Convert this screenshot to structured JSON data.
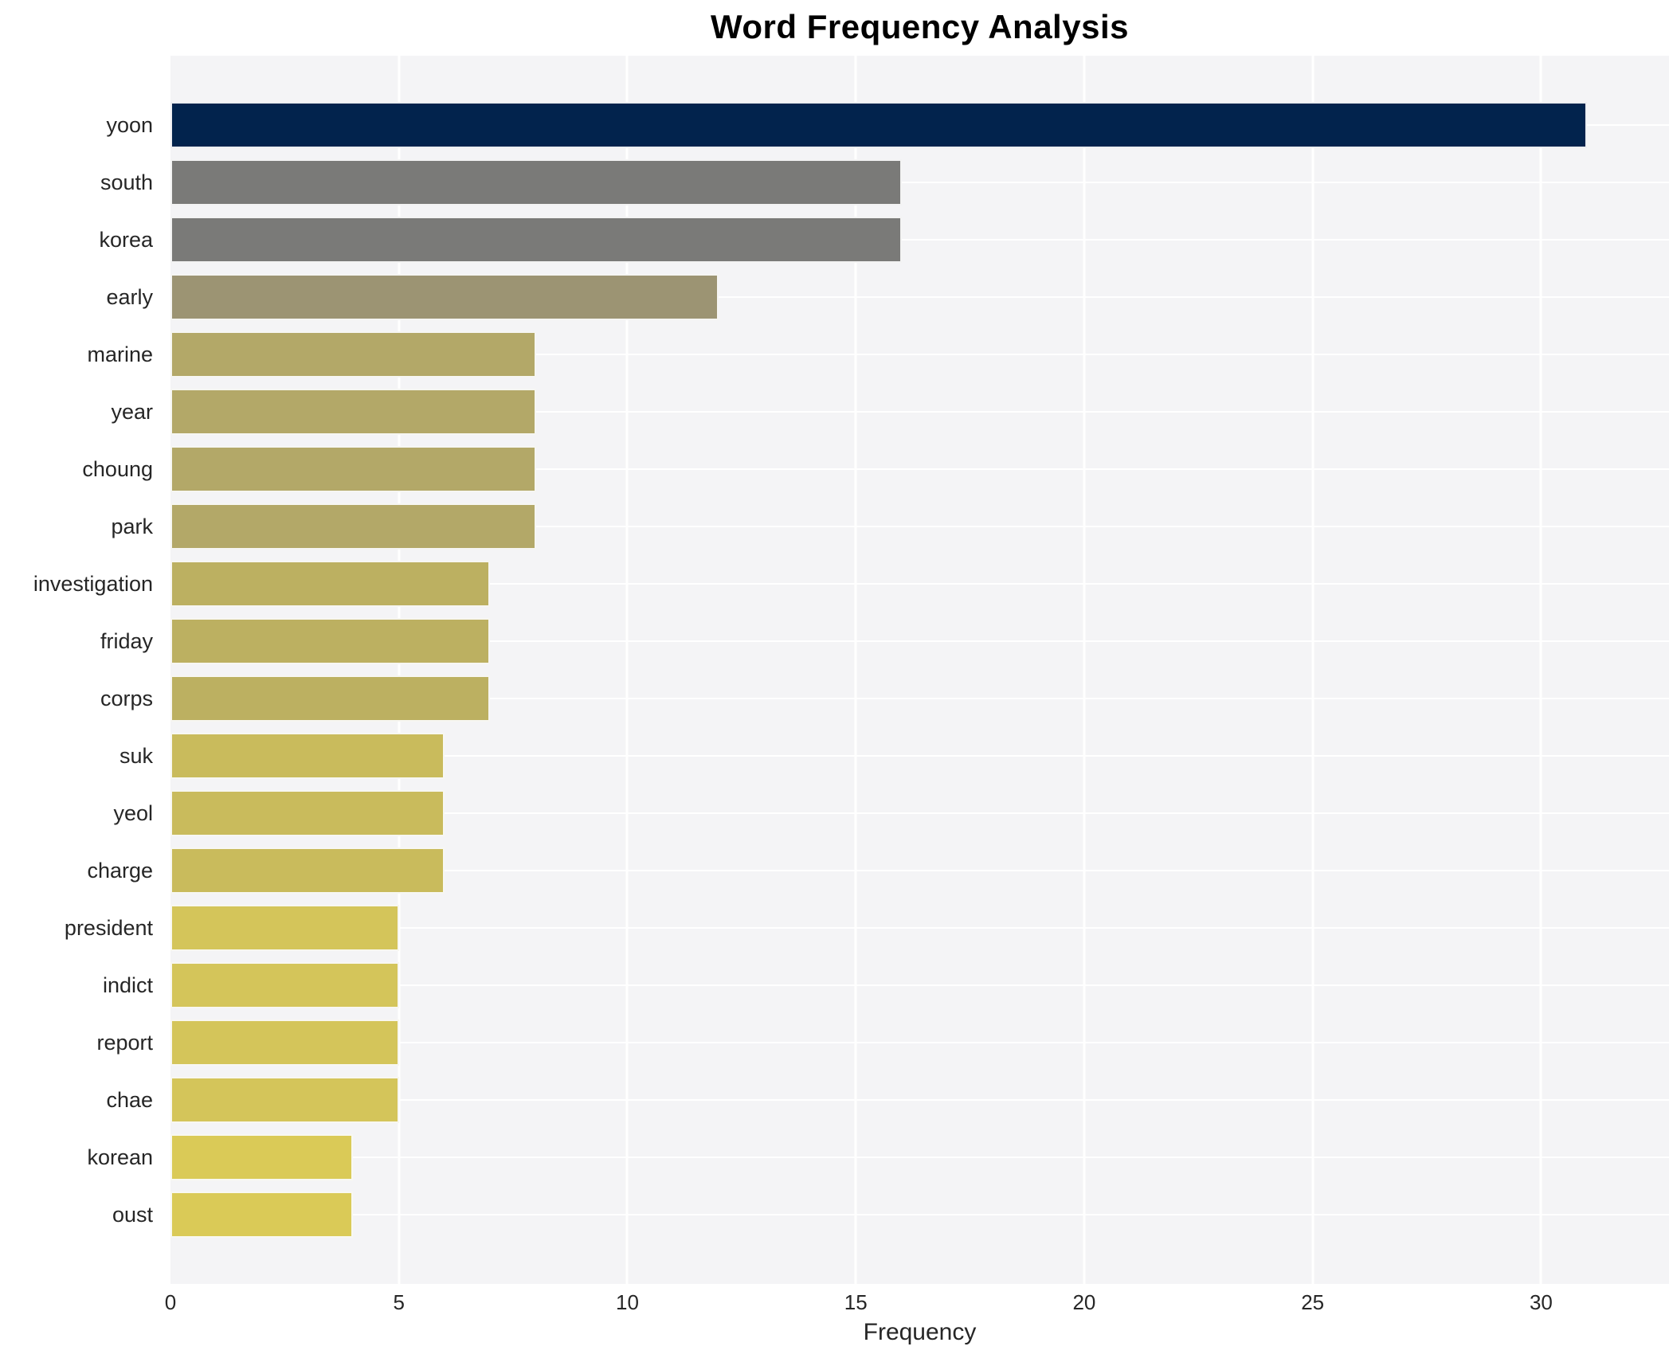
{
  "chart_data": {
    "type": "bar",
    "orientation": "horizontal",
    "title": "Word Frequency Analysis",
    "xlabel": "Frequency",
    "ylabel": "",
    "categories": [
      "yoon",
      "south",
      "korea",
      "early",
      "marine",
      "year",
      "choung",
      "park",
      "investigation",
      "friday",
      "corps",
      "suk",
      "yeol",
      "charge",
      "president",
      "indict",
      "report",
      "chae",
      "korean",
      "oust"
    ],
    "values": [
      31,
      16,
      16,
      12,
      8,
      8,
      8,
      8,
      7,
      7,
      7,
      6,
      6,
      6,
      5,
      5,
      5,
      5,
      4,
      4
    ],
    "bar_colors": [
      "#02234d",
      "#7a7a78",
      "#7a7a78",
      "#9c9473",
      "#b3a868",
      "#b3a868",
      "#b3a868",
      "#b3a868",
      "#bcb061",
      "#bcb061",
      "#bcb061",
      "#c9bb5c",
      "#c9bb5c",
      "#c9bb5c",
      "#d4c55a",
      "#d4c55a",
      "#d4c55a",
      "#d4c55a",
      "#daca57",
      "#daca57"
    ],
    "xlim": [
      0,
      32.8
    ],
    "xticks": [
      0,
      5,
      10,
      15,
      20,
      25,
      30
    ],
    "grid": true,
    "legend": "none",
    "plot_background": "#f4f4f6",
    "gridline_color": "#ffffff",
    "text_color": "#262626",
    "title_color": "#000000"
  }
}
